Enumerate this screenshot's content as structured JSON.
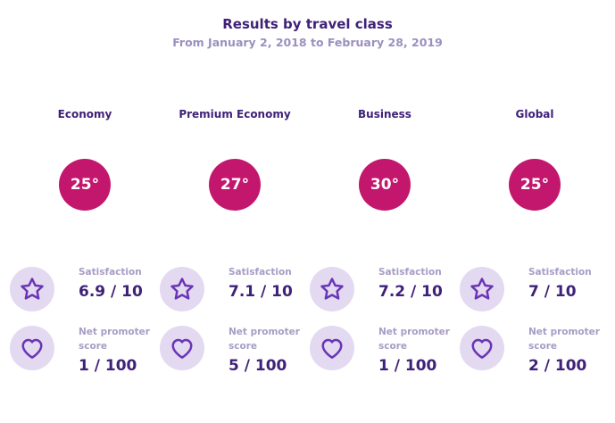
{
  "header": {
    "title": "Results by travel class",
    "subtitle": "From January 2, 2018 to February 28, 2019"
  },
  "labels": {
    "satisfaction": "Satisfaction",
    "nps": "Net promoter score"
  },
  "colors": {
    "accent": "#c2176d",
    "primary_text": "#3f2178",
    "muted_text": "#a79dc6",
    "icon_bg": "#e3d9f1",
    "icon_stroke": "#6a35b5"
  },
  "icons": {
    "satisfaction": "star-icon",
    "nps": "heart-icon"
  },
  "classes": [
    {
      "name": "Economy",
      "temperature": "25°",
      "satisfaction": "6.9 / 10",
      "nps": "1 / 100"
    },
    {
      "name": "Premium Economy",
      "temperature": "27°",
      "satisfaction": "7.1 / 10",
      "nps": "5 / 100"
    },
    {
      "name": "Business",
      "temperature": "30°",
      "satisfaction": "7.2 / 10",
      "nps": "1 / 100"
    },
    {
      "name": "Global",
      "temperature": "25°",
      "satisfaction": "7 / 10",
      "nps": "2 / 100"
    }
  ]
}
